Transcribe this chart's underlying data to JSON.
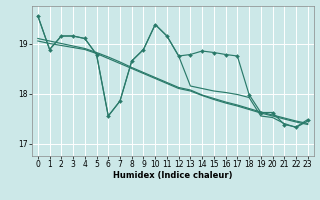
{
  "xlabel": "Humidex (Indice chaleur)",
  "xlim": [
    -0.5,
    23.5
  ],
  "ylim": [
    16.75,
    19.75
  ],
  "yticks": [
    17,
    18,
    19
  ],
  "xticks": [
    0,
    1,
    2,
    3,
    4,
    5,
    6,
    7,
    8,
    9,
    10,
    11,
    12,
    13,
    14,
    15,
    16,
    17,
    18,
    19,
    20,
    21,
    22,
    23
  ],
  "bg_color": "#cce8e8",
  "grid_color": "#ffffff",
  "line_color": "#2a7a6a",
  "y_jagged": [
    19.55,
    18.88,
    19.15,
    19.15,
    19.1,
    18.78,
    17.55,
    17.85,
    18.65,
    18.88,
    19.38,
    19.15,
    18.75,
    18.78,
    18.85,
    18.82,
    18.78,
    18.75,
    17.98,
    17.62,
    17.62,
    17.38,
    17.33,
    17.48
  ],
  "y_trend1": [
    19.1,
    19.05,
    19.0,
    18.95,
    18.9,
    18.82,
    18.73,
    18.63,
    18.52,
    18.42,
    18.32,
    18.22,
    18.12,
    18.07,
    17.97,
    17.9,
    17.83,
    17.77,
    17.7,
    17.63,
    17.57,
    17.51,
    17.45,
    17.4
  ],
  "y_trend2": [
    19.05,
    19.0,
    18.96,
    18.92,
    18.88,
    18.8,
    18.7,
    18.6,
    18.5,
    18.4,
    18.3,
    18.2,
    18.1,
    18.05,
    17.96,
    17.88,
    17.81,
    17.75,
    17.68,
    17.61,
    17.55,
    17.49,
    17.43,
    17.38
  ],
  "y_second": [
    19.55,
    18.88,
    19.15,
    19.15,
    19.1,
    18.78,
    17.55,
    17.85,
    18.65,
    18.88,
    19.38,
    19.15,
    18.75,
    18.15,
    18.1,
    18.05,
    18.02,
    17.98,
    17.92,
    17.55,
    17.52,
    17.4,
    17.32,
    17.45
  ]
}
